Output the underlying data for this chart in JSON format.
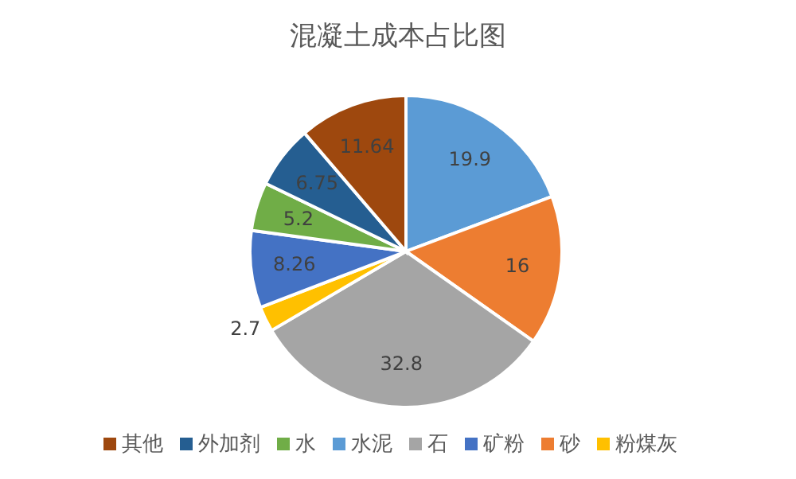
{
  "chart_data": {
    "type": "pie",
    "title": "混凝土成本占比图",
    "categories": [
      "水泥",
      "砂",
      "石",
      "粉煤灰",
      "矿粉",
      "水",
      "外加剂",
      "其他"
    ],
    "values": [
      19.9,
      16,
      32.8,
      2.7,
      8.26,
      5.2,
      6.75,
      11.64
    ],
    "colors": [
      "#5b9bd5",
      "#ed7d31",
      "#a5a5a5",
      "#ffc000",
      "#4472c4",
      "#70ad47",
      "#255e91",
      "#9e480e"
    ],
    "data_labels": true,
    "legend": "bottom"
  }
}
